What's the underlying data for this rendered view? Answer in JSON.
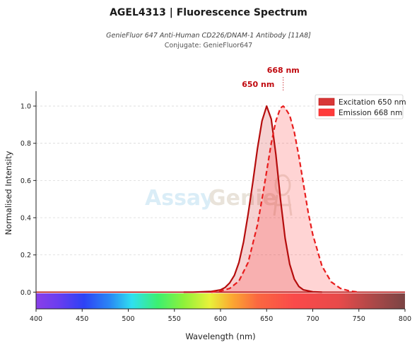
{
  "header": {
    "title": "AGEL4313  |  Fluorescence Spectrum",
    "subtitle": "GenieFluor 647 Anti-Human CD226/DNAM-1 Antibody [11A8]",
    "conjugate": "Conjugate: GenieFluor647"
  },
  "watermark": {
    "part1": "Assay",
    "part2": "Genie"
  },
  "chart_data": {
    "type": "area",
    "xlabel": "Wavelength (nm)",
    "ylabel": "Normalised Intensity",
    "xlim": [
      400,
      800
    ],
    "ylim": [
      -0.09,
      1.08
    ],
    "x_ticks": [
      400,
      450,
      500,
      550,
      600,
      650,
      700,
      750,
      800
    ],
    "y_ticks": [
      0.0,
      0.2,
      0.4,
      0.6,
      0.8,
      1.0
    ],
    "grid": "horizontal-dashed",
    "legend_position": "top-right",
    "spectrum_bar": "visible-spectrum-gradient",
    "series": [
      {
        "name": "Excitation  650 nm",
        "peak": 650,
        "peak_label": "650 nm",
        "color": "#b50d0d",
        "fill": "#d62c2c",
        "x": [
          560,
          570,
          580,
          590,
          600,
          605,
          610,
          615,
          620,
          625,
          630,
          635,
          640,
          645,
          650,
          655,
          660,
          665,
          670,
          675,
          680,
          685,
          690,
          700,
          710
        ],
        "y": [
          0.0,
          0.0,
          0.002,
          0.004,
          0.012,
          0.025,
          0.05,
          0.09,
          0.16,
          0.27,
          0.42,
          0.59,
          0.77,
          0.92,
          1.0,
          0.93,
          0.74,
          0.5,
          0.29,
          0.15,
          0.07,
          0.03,
          0.012,
          0.002,
          0.0
        ]
      },
      {
        "name": "Emission  668 nm",
        "peak": 668,
        "peak_label": "668 nm",
        "color": "#e81e1e",
        "fill": "#ff3b3b",
        "x": [
          590,
          600,
          610,
          620,
          630,
          640,
          645,
          650,
          655,
          660,
          665,
          668,
          670,
          675,
          680,
          685,
          690,
          695,
          700,
          710,
          720,
          730,
          740,
          750
        ],
        "y": [
          0.0,
          0.006,
          0.02,
          0.06,
          0.16,
          0.36,
          0.5,
          0.65,
          0.8,
          0.92,
          0.99,
          1.0,
          0.99,
          0.95,
          0.86,
          0.73,
          0.58,
          0.43,
          0.31,
          0.14,
          0.055,
          0.02,
          0.006,
          0.0
        ]
      }
    ]
  }
}
